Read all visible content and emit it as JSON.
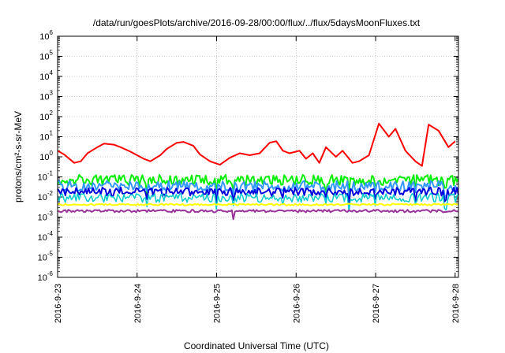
{
  "chart_data": {
    "type": "line",
    "title": "/data/run/goesPlots/archive/2016-09-28/00:00/flux/../flux/5daysMoonFluxes.txt",
    "xlabel": "Coordinated Universal Time (UTC)",
    "ylabel": "protons/cm²-s-sr-MeV",
    "yscale": "log",
    "ylim_exp": [
      -6,
      6
    ],
    "ytick_labels": [
      "10-6",
      "10-5",
      "10-4",
      "10-3",
      "10-2",
      "10-1",
      "100",
      "101",
      "102",
      "103",
      "104",
      "105",
      "106"
    ],
    "x_unit": "day",
    "xlim": [
      "2016-9-23",
      "2016-9-28 01:00"
    ],
    "xtick_labels": [
      "2016-9-23",
      "2016-9-24",
      "2016-9-25",
      "2016-9-26",
      "2016-9-27",
      "2016-9-28"
    ],
    "grid": true,
    "series": [
      {
        "color": "#ff0000",
        "width": 2,
        "x": [
          "2016-9-23 00:00",
          "2016-9-23 02:00",
          "2016-9-23 05:00",
          "2016-9-23 07:00",
          "2016-9-23 09:00",
          "2016-9-23 12:00",
          "2016-9-23 14:00",
          "2016-9-23 17:00",
          "2016-9-23 19:00",
          "2016-9-23 22:00",
          "2016-9-24 00:00",
          "2016-9-24 02:00",
          "2016-9-24 04:00",
          "2016-9-24 07:00",
          "2016-9-24 09:00",
          "2016-9-24 12:00",
          "2016-9-24 14:00",
          "2016-9-24 17:00",
          "2016-9-24 19:00",
          "2016-9-24 22:00",
          "2016-9-25 01:00",
          "2016-9-25 04:00",
          "2016-9-25 07:00",
          "2016-9-25 10:00",
          "2016-9-25 13:00",
          "2016-9-25 16:00",
          "2016-9-25 18:00",
          "2016-9-25 20:00",
          "2016-9-25 22:00",
          "2016-9-26 01:00",
          "2016-9-26 03:00",
          "2016-9-26 05:00",
          "2016-9-26 07:00",
          "2016-9-26 09:00",
          "2016-9-26 12:00",
          "2016-9-26 14:00",
          "2016-9-26 17:00",
          "2016-9-26 19:00",
          "2016-9-26 22:00",
          "2016-9-27 01:00",
          "2016-9-27 04:00",
          "2016-9-27 06:00",
          "2016-9-27 09:00",
          "2016-9-27 12:00",
          "2016-9-27 14:00",
          "2016-9-27 16:00",
          "2016-9-27 19:00",
          "2016-9-27 22:00",
          "2016-9-28 00:00"
        ],
        "y": [
          2,
          1.3,
          0.5,
          0.6,
          1.5,
          3,
          4.5,
          4,
          3,
          1.8,
          1.2,
          0.8,
          0.6,
          1.2,
          2.5,
          5,
          5.5,
          3.5,
          1.3,
          0.6,
          0.4,
          0.9,
          1.5,
          1.2,
          1.5,
          5,
          6,
          2,
          1.5,
          2,
          0.8,
          1.5,
          0.5,
          3,
          1,
          2,
          0.5,
          0.6,
          1.2,
          45,
          10,
          25,
          2,
          0.6,
          0.35,
          40,
          20,
          3,
          6
        ]
      },
      {
        "color": "#00ee00",
        "width": 2,
        "base": 0.07,
        "amp": 0.12,
        "dips": [
          "2016-9-24 03:00",
          "2016-9-25 00:00",
          "2016-9-25 05:00",
          "2016-9-25 20:00",
          "2016-9-26 09:00",
          "2016-9-26 16:00",
          "2016-9-27 00:00",
          "2016-9-27 12:00",
          "2016-9-27 21:00"
        ]
      },
      {
        "color": "#3399ff",
        "width": 2,
        "base": 0.035,
        "amp": 0.12,
        "dips": [
          "2016-9-24 03:00",
          "2016-9-25 00:00",
          "2016-9-25 05:00",
          "2016-9-25 20:00",
          "2016-9-26 09:00",
          "2016-9-26 16:00",
          "2016-9-27 00:00",
          "2016-9-27 12:00",
          "2016-9-27 21:00"
        ]
      },
      {
        "color": "#0000dd",
        "width": 2,
        "base": 0.018,
        "amp": 0.1,
        "dips": [
          "2016-9-24 03:00",
          "2016-9-25 00:00",
          "2016-9-25 05:00",
          "2016-9-25 20:00",
          "2016-9-26 09:00",
          "2016-9-26 16:00",
          "2016-9-27 00:00",
          "2016-9-27 12:00",
          "2016-9-27 21:00"
        ]
      },
      {
        "color": "#00cccc",
        "width": 1.5,
        "base": 0.009,
        "amp": 0.1,
        "dips": [
          "2016-9-24 03:00",
          "2016-9-25 00:00",
          "2016-9-25 05:00",
          "2016-9-25 20:00",
          "2016-9-26 09:00",
          "2016-9-26 16:00",
          "2016-9-27 00:00",
          "2016-9-27 12:00",
          "2016-9-27 21:00"
        ]
      },
      {
        "color": "#ffff00",
        "width": 2,
        "base": 0.0042,
        "amp": 0.02,
        "dips": []
      },
      {
        "color": "#993399",
        "width": 2,
        "base": 0.002,
        "amp": 0.03,
        "dips": [
          "2016-9-25 05:00"
        ]
      }
    ]
  }
}
